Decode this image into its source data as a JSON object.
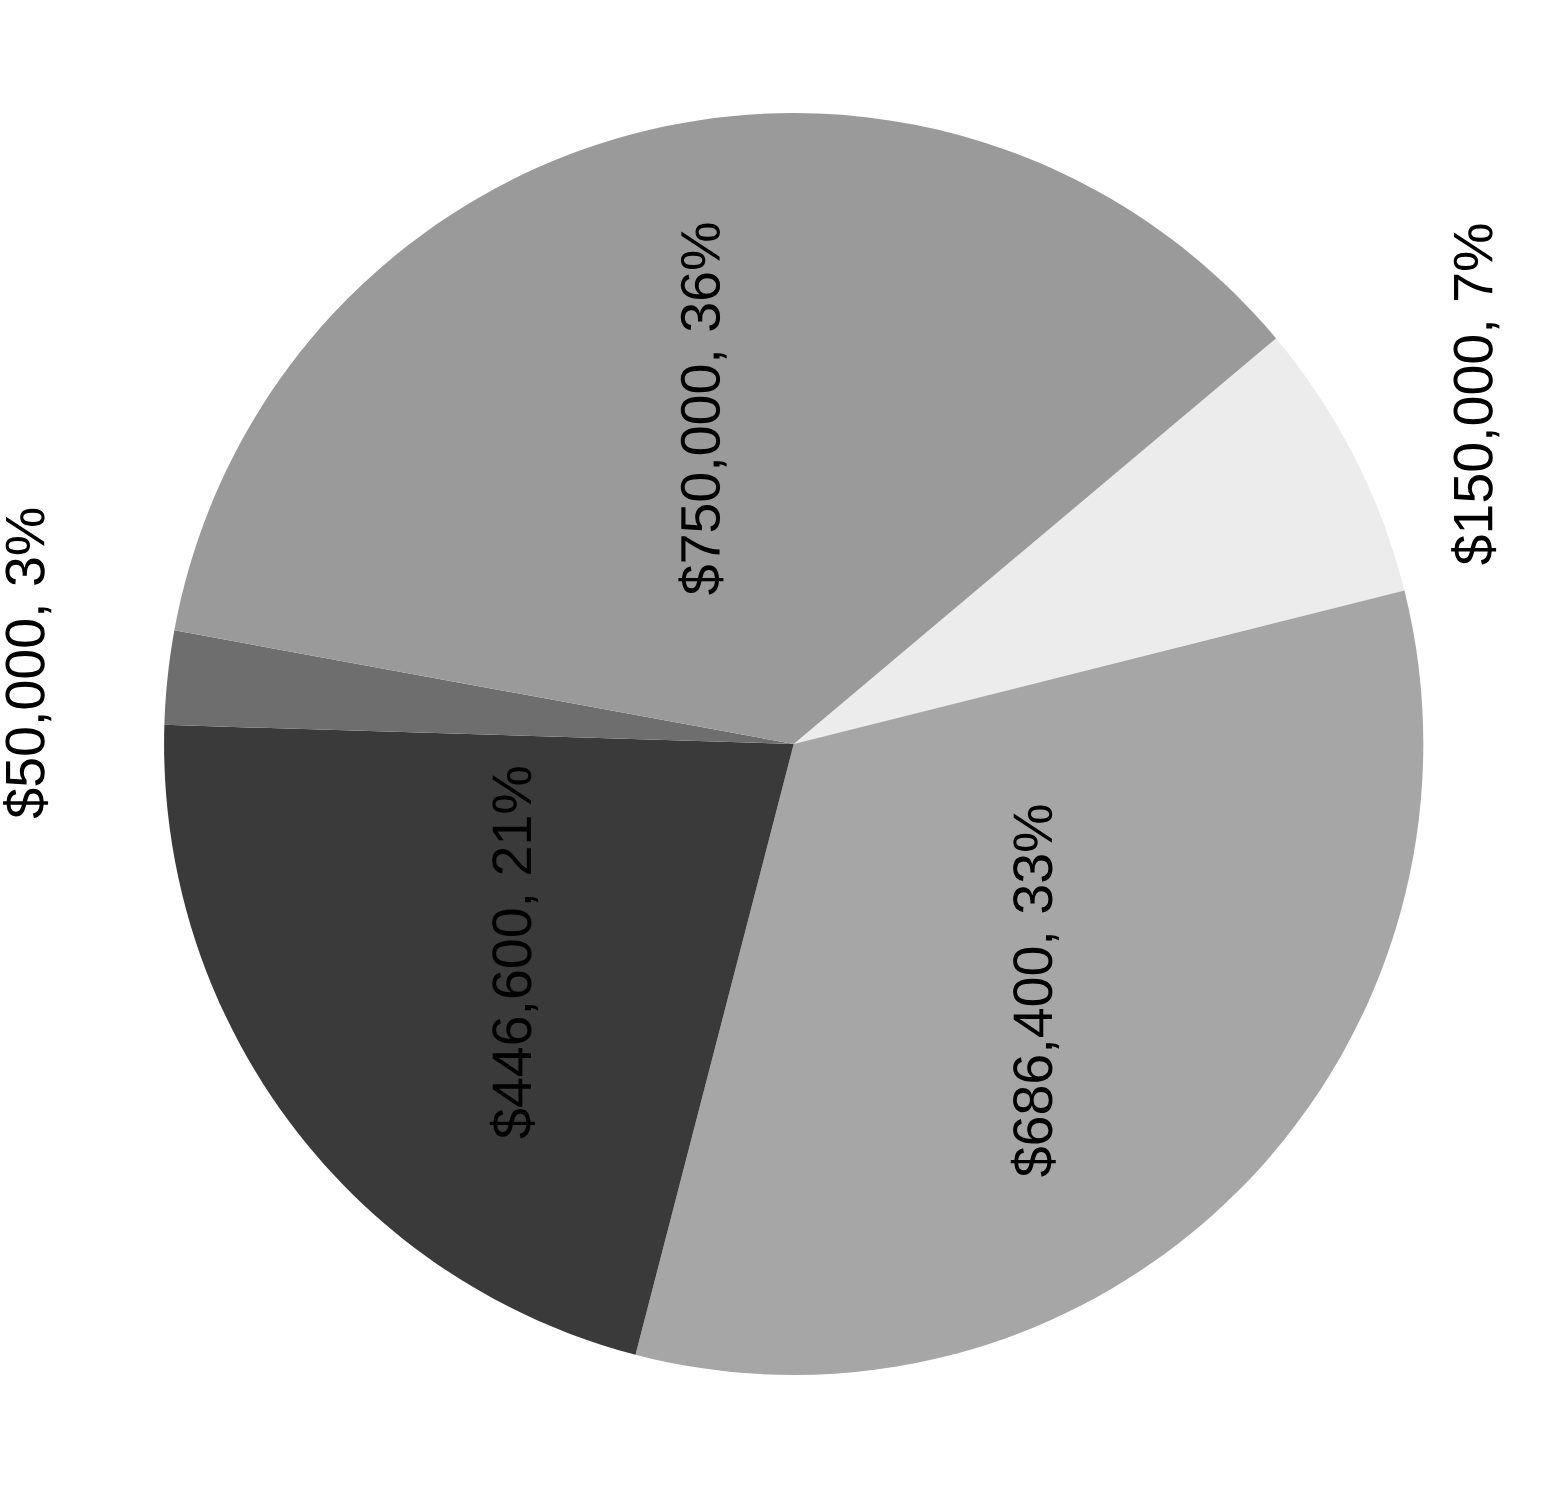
{
  "chart_data": {
    "type": "pie",
    "categories": [
      null,
      null,
      null,
      null,
      null
    ],
    "values": [
      150000,
      686400,
      446600,
      50000,
      750000
    ],
    "value_labels": [
      "$150,000, 7%",
      "$686,400, 33%",
      "$446,600, 21%",
      "$50,000, 3%",
      "$750,000, 36%"
    ],
    "colors": [
      "#ececec",
      "#a6a6a6",
      "#3a3a3a",
      "#6e6e6e",
      "#9a9a9a"
    ],
    "legend": false
  }
}
